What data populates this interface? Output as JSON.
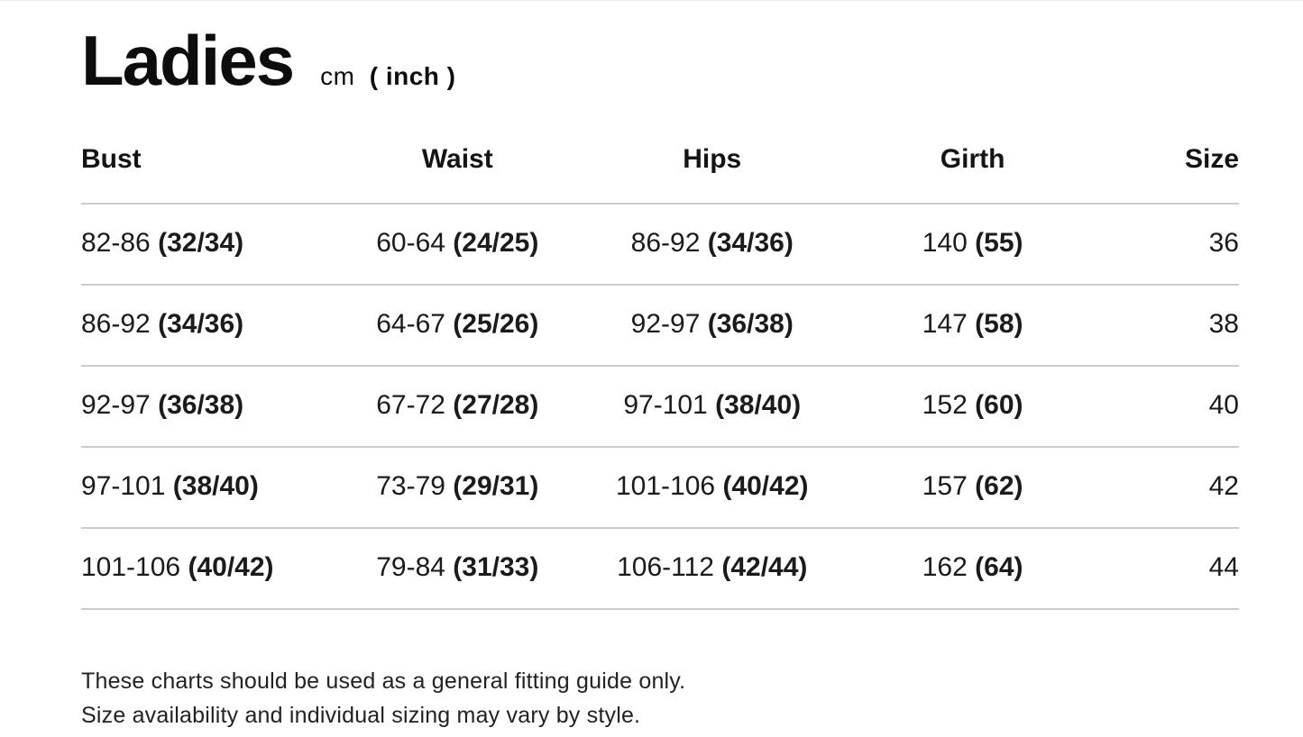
{
  "title": "Ladies",
  "unit_cm": "cm",
  "unit_inch": "( inch )",
  "columns": [
    "Bust",
    "Waist",
    "Hips",
    "Girth",
    "Size"
  ],
  "rows": [
    {
      "bust_cm": "82-86",
      "bust_in": "(32/34)",
      "waist_cm": "60-64",
      "waist_in": "(24/25)",
      "hips_cm": "86-92",
      "hips_in": "(34/36)",
      "girth_cm": "140",
      "girth_in": "(55)",
      "size": "36"
    },
    {
      "bust_cm": "86-92",
      "bust_in": "(34/36)",
      "waist_cm": "64-67",
      "waist_in": "(25/26)",
      "hips_cm": "92-97",
      "hips_in": "(36/38)",
      "girth_cm": "147",
      "girth_in": "(58)",
      "size": "38"
    },
    {
      "bust_cm": "92-97",
      "bust_in": "(36/38)",
      "waist_cm": "67-72",
      "waist_in": "(27/28)",
      "hips_cm": "97-101",
      "hips_in": "(38/40)",
      "girth_cm": "152",
      "girth_in": "(60)",
      "size": "40"
    },
    {
      "bust_cm": "97-101",
      "bust_in": "(38/40)",
      "waist_cm": "73-79",
      "waist_in": "(29/31)",
      "hips_cm": "101-106",
      "hips_in": "(40/42)",
      "girth_cm": "157",
      "girth_in": "(62)",
      "size": "42"
    },
    {
      "bust_cm": "101-106",
      "bust_in": "(40/42)",
      "waist_cm": "79-84",
      "waist_in": "(31/33)",
      "hips_cm": "106-112",
      "hips_in": "(42/44)",
      "girth_cm": "162",
      "girth_in": "(64)",
      "size": "44"
    }
  ],
  "footer": {
    "line1": "These charts should be used as a general fitting guide only.",
    "line2": "Size availability and individual sizing may vary by style."
  },
  "colors": {
    "background": "#ffffff",
    "text": "#161616",
    "rule": "#cccccc"
  }
}
